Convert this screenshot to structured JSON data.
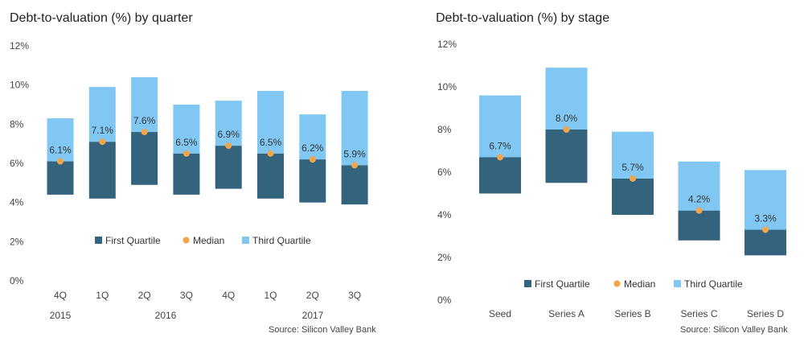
{
  "colors": {
    "first_quartile": "#34637e",
    "third_quartile": "#80c8f3",
    "median": "#f2a54b"
  },
  "chart_data": [
    {
      "type": "bar",
      "subtype": "stacked-range",
      "title": "Debt-to-valuation (%) by quarter",
      "categories": [
        "4Q",
        "1Q",
        "2Q",
        "3Q",
        "4Q",
        "1Q",
        "2Q",
        "3Q"
      ],
      "year_labels": [
        "2015",
        "2016",
        "2017"
      ],
      "ylim": [
        0,
        12
      ],
      "yticks": [
        "0%",
        "2%",
        "4%",
        "6%",
        "8%",
        "10%",
        "12%"
      ],
      "series": [
        {
          "name": "First Quartile",
          "low": [
            4.4,
            4.2,
            4.9,
            4.4,
            4.7,
            4.2,
            4.0,
            3.9
          ],
          "high": [
            6.1,
            7.1,
            7.6,
            6.5,
            6.9,
            6.5,
            6.2,
            5.9
          ]
        },
        {
          "name": "Median",
          "values": [
            6.1,
            7.1,
            7.6,
            6.5,
            6.9,
            6.5,
            6.2,
            5.9
          ]
        },
        {
          "name": "Third Quartile",
          "low": [
            6.1,
            7.1,
            7.6,
            6.5,
            6.9,
            6.5,
            6.2,
            5.9
          ],
          "high": [
            8.3,
            9.9,
            10.4,
            9.0,
            9.2,
            9.7,
            8.5,
            9.7
          ]
        }
      ],
      "data_labels": [
        "6.1%",
        "7.1%",
        "7.6%",
        "6.5%",
        "6.9%",
        "6.5%",
        "6.2%",
        "5.9%"
      ],
      "legend": [
        "First Quartile",
        "Median",
        "Third Quartile"
      ],
      "legend_position": "inside-bottom-center",
      "grid": false,
      "source": "Source: Silicon Valley Bank"
    },
    {
      "type": "bar",
      "subtype": "stacked-range",
      "title": "Debt-to-valuation (%) by stage",
      "categories": [
        "Seed",
        "Series A",
        "Series B",
        "Series C",
        "Series D"
      ],
      "ylim": [
        0,
        12
      ],
      "yticks": [
        "0%",
        "2%",
        "4%",
        "6%",
        "8%",
        "10%",
        "12%"
      ],
      "series": [
        {
          "name": "First Quartile",
          "low": [
            5.0,
            5.5,
            4.0,
            2.8,
            2.1
          ],
          "high": [
            6.7,
            8.0,
            5.7,
            4.2,
            3.3
          ]
        },
        {
          "name": "Median",
          "values": [
            6.7,
            8.0,
            5.7,
            4.2,
            3.3
          ]
        },
        {
          "name": "Third Quartile",
          "low": [
            6.7,
            8.0,
            5.7,
            4.2,
            3.3
          ],
          "high": [
            9.6,
            10.9,
            7.9,
            6.5,
            6.1
          ]
        }
      ],
      "data_labels": [
        "6.7%",
        "8.0%",
        "5.7%",
        "4.2%",
        "3.3%"
      ],
      "legend": [
        "First Quartile",
        "Median",
        "Third Quartile"
      ],
      "legend_position": "inside-bottom-center",
      "grid": false,
      "source": "Source: Silicon Valley Bank"
    }
  ]
}
